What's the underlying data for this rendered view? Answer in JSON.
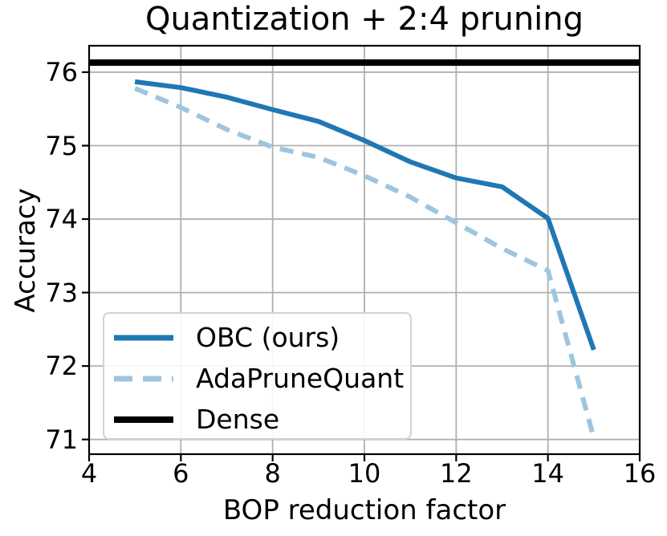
{
  "chart_data": {
    "type": "line",
    "title": "Quantization + 2:4 pruning",
    "xlabel": "BOP reduction factor",
    "ylabel": "Accuracy",
    "xlim": [
      4,
      16
    ],
    "ylim": [
      70.8,
      76.36
    ],
    "xticks": [
      4,
      6,
      8,
      10,
      12,
      14,
      16
    ],
    "yticks": [
      71,
      72,
      73,
      74,
      75,
      76
    ],
    "grid": true,
    "grid_color": "#b0b0b0",
    "spine_color": "#000000",
    "background_color": "#ffffff",
    "legend_position": "lower-left",
    "series": [
      {
        "name": "OBC (ours)",
        "color": "#1f77b4",
        "style": "solid",
        "line_width": 6,
        "x": [
          5,
          6,
          7,
          8,
          9,
          10,
          11,
          12,
          13,
          14,
          15
        ],
        "y": [
          75.87,
          75.79,
          75.66,
          75.49,
          75.33,
          75.07,
          74.78,
          74.56,
          74.44,
          74.01,
          72.22
        ]
      },
      {
        "name": "AdaPruneQuant",
        "color": "#9ec5e0",
        "style": "dashed",
        "line_width": 6,
        "x": [
          5,
          6,
          7,
          8,
          9,
          10,
          11,
          12,
          13,
          14,
          15
        ],
        "y": [
          75.78,
          75.52,
          75.22,
          74.98,
          74.84,
          74.59,
          74.3,
          73.95,
          73.6,
          73.3,
          71.02
        ]
      },
      {
        "name": "Dense",
        "color": "#000000",
        "style": "solid",
        "line_width": 8,
        "x": [
          4,
          16
        ],
        "y": [
          76.13,
          76.13
        ]
      }
    ]
  }
}
